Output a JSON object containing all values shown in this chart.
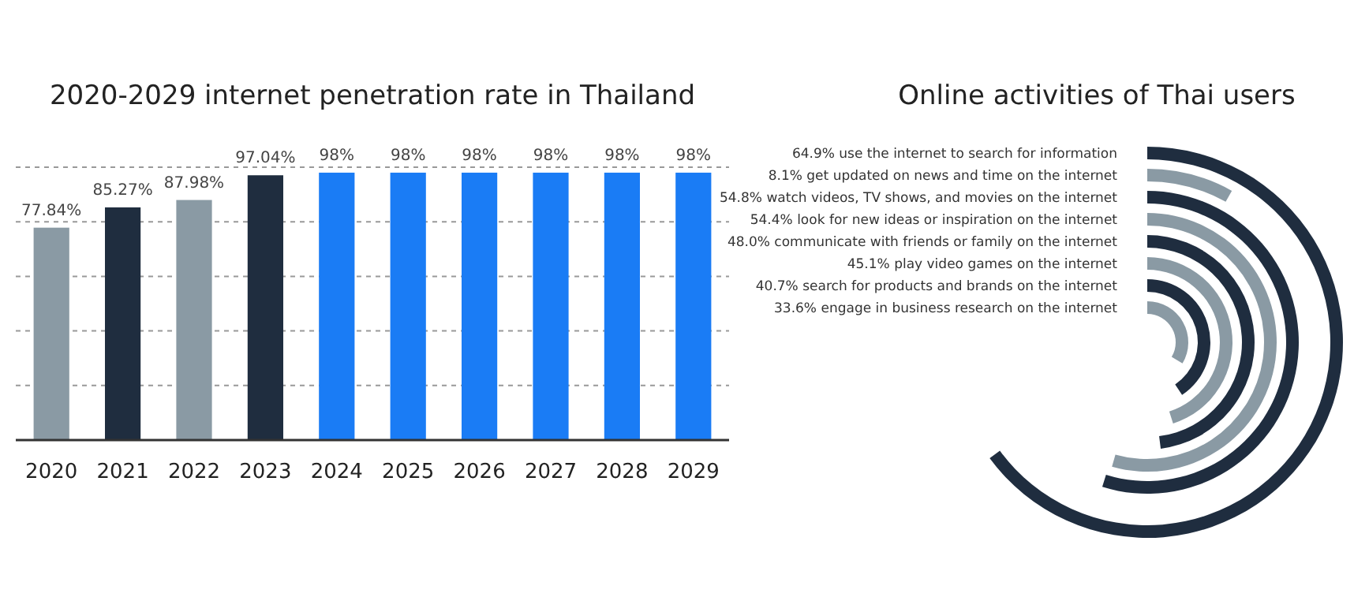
{
  "chart_data": [
    {
      "type": "bar",
      "title": "2020-2029 internet penetration rate in Thailand",
      "categories": [
        "2020",
        "2021",
        "2022",
        "2023",
        "2024",
        "2025",
        "2026",
        "2027",
        "2028",
        "2029"
      ],
      "values": [
        77.84,
        85.27,
        87.98,
        97.04,
        98,
        98,
        98,
        98,
        98,
        98
      ],
      "colors": [
        "#8a9aa4",
        "#1f2d3f",
        "#8a9aa4",
        "#1f2d3f",
        "#1a7cf5",
        "#1a7cf5",
        "#1a7cf5",
        "#1a7cf5",
        "#1a7cf5",
        "#1a7cf5"
      ],
      "value_labels": [
        "77.84%",
        "85.27%",
        "87.98%",
        "97.04%",
        "98%",
        "98%",
        "98%",
        "98%",
        "98%",
        "98%"
      ],
      "ylim": [
        0,
        100
      ],
      "yticks": [
        {
          "value": 20,
          "label": null
        },
        {
          "value": 40,
          "label": null
        },
        {
          "value": 60,
          "label": null
        },
        {
          "value": 80,
          "label": null
        },
        {
          "value": 100,
          "label": null
        }
      ],
      "grid": "y",
      "tick_labels": "x"
    },
    {
      "type": "other",
      "title": "Online activities of Thai users",
      "categories": [
        "use the internet to search for information",
        "get updated on news and time on the internet",
        "watch videos, TV shows, and movies on the internet",
        "look for new ideas or inspiration on the internet",
        "communicate with friends or family on the internet",
        "play video games on the internet",
        "search for products and brands on the internet",
        "engage in business research on the internet"
      ],
      "values": [
        64.9,
        8.1,
        54.8,
        54.4,
        48.0,
        45.1,
        40.7,
        33.6
      ],
      "value_labels": [
        "64.9%",
        "8.1%",
        "54.8%",
        "54.4%",
        "48.0%",
        "45.1%",
        "40.7%",
        "33.6%"
      ],
      "colors": [
        "#1f2d3f",
        "#8a9aa4",
        "#1f2d3f",
        "#8a9aa4",
        "#1f2d3f",
        "#8a9aa4",
        "#1f2d3f",
        "#8a9aa4"
      ]
    }
  ]
}
